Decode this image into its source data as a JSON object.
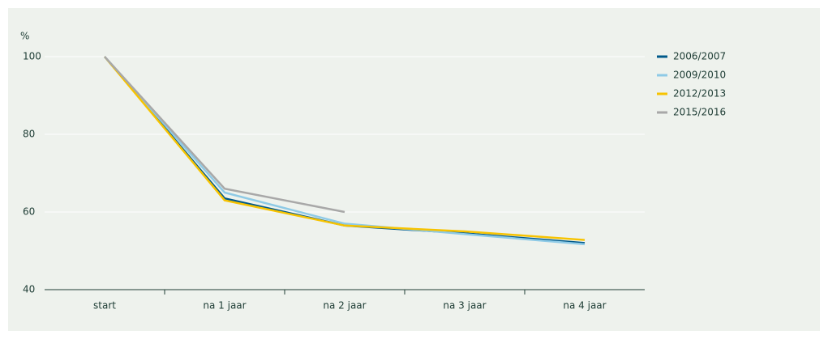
{
  "chart_data": {
    "type": "line",
    "y_label": "%",
    "categories": [
      "start",
      "na 1 jaar",
      "na 2 jaar",
      "na 3 jaar",
      "na 4 jaar"
    ],
    "series": [
      {
        "name": "2006/2007",
        "color": "#00598a",
        "values": [
          100,
          63.5,
          56.5,
          54.5,
          52
        ]
      },
      {
        "name": "2009/2010",
        "color": "#8ecae6",
        "values": [
          100,
          65,
          57,
          54.3,
          51.7
        ]
      },
      {
        "name": "2012/2013",
        "color": "#f7c300",
        "values": [
          100,
          63,
          56.5,
          55,
          52.8
        ]
      },
      {
        "name": "2015/2016",
        "color": "#a8a8a8",
        "values": [
          100,
          66,
          60,
          null,
          null
        ]
      }
    ],
    "ylim": [
      40,
      100
    ],
    "yticks": [
      40,
      60,
      80,
      100
    ],
    "grid": true,
    "legend": "right"
  }
}
